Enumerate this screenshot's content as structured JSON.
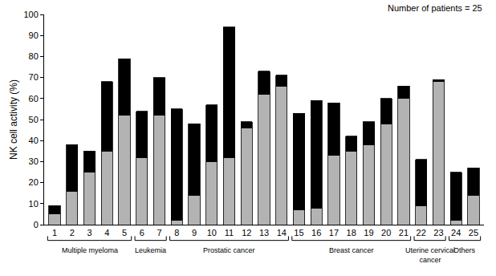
{
  "chart_data": {
    "type": "bar",
    "stacked": true,
    "y_label": "NK cell activity (%)",
    "annotations": [
      {
        "text": "Number of patients = 25"
      }
    ],
    "categories": [
      "1",
      "2",
      "3",
      "4",
      "5",
      "6",
      "7",
      "8",
      "9",
      "10",
      "11",
      "12",
      "13",
      "14",
      "15",
      "16",
      "17",
      "18",
      "19",
      "20",
      "21",
      "22",
      "23",
      "24",
      "25"
    ],
    "series": [
      {
        "color": "#b3b3b3",
        "values": [
          5,
          16,
          25,
          35,
          52,
          32,
          52,
          2,
          14,
          30,
          32,
          46,
          62,
          66,
          7,
          8,
          33,
          35,
          38,
          48,
          60,
          9,
          68,
          2,
          14
        ]
      },
      {
        "color": "#000000",
        "values": [
          4,
          22,
          10,
          33,
          27,
          22,
          18,
          53,
          34,
          27,
          62,
          3,
          11,
          5,
          46,
          51,
          25,
          7,
          11,
          12,
          6,
          22,
          1,
          23,
          13
        ]
      }
    ],
    "groups": [
      {
        "label": [
          "Multiple myeloma"
        ],
        "start": "1",
        "end": "5"
      },
      {
        "label": [
          "Leukemia"
        ],
        "start": "6",
        "end": "7"
      },
      {
        "label": [
          "Prostatic cancer"
        ],
        "start": "8",
        "end": "14"
      },
      {
        "label": [
          "Breast cancer"
        ],
        "start": "15",
        "end": "21"
      },
      {
        "label": [
          "Uterine cervical",
          "cancer"
        ],
        "start": "22",
        "end": "23"
      },
      {
        "label": [
          "Others"
        ],
        "start": "24",
        "end": "25"
      }
    ],
    "ylim": [
      0,
      100
    ],
    "yticks": [
      0,
      10,
      20,
      30,
      40,
      50,
      60,
      70,
      80,
      90,
      100
    ],
    "grid": false
  }
}
